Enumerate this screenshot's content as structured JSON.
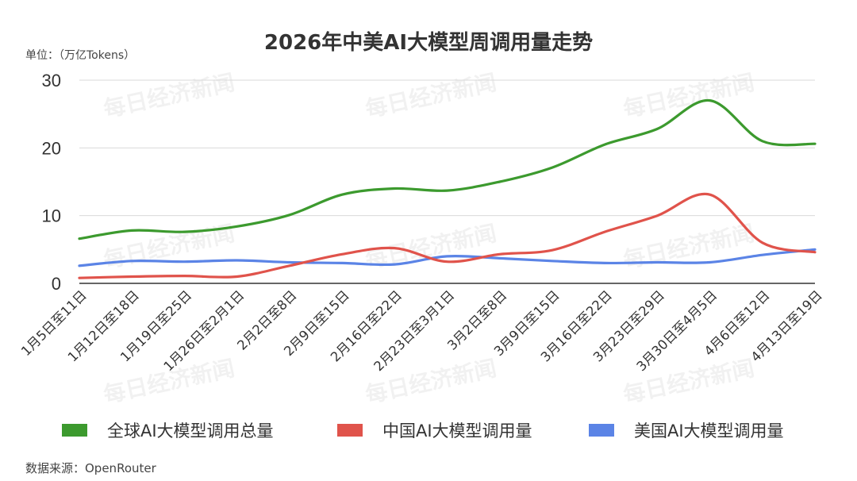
{
  "chart_data": {
    "type": "line",
    "title": "2026年中美AI大模型周调用量走势",
    "unit_label": "单位：（万亿Tokens）",
    "source": "数据来源：OpenRouter",
    "watermark": "每日经济新闻",
    "ylim": [
      0,
      30
    ],
    "yticks": [
      0,
      10,
      20,
      30
    ],
    "grid": true,
    "legend_position": "bottom",
    "categories": [
      "1月5日至11日",
      "1月12日至18日",
      "1月19日至25日",
      "1月26日至2月1日",
      "2月2日至8日",
      "2月9日至15日",
      "2月16日至22日",
      "2月23日至3月1日",
      "3月2日至8日",
      "3月9日至15日",
      "3月16日至22日",
      "3月23日至29日",
      "3月30日至4月5日",
      "4月6日至12日",
      "4月13日至19日"
    ],
    "series": [
      {
        "name": "全球AI大模型调用总量",
        "color": "#3c9a2e",
        "values": [
          6.6,
          7.8,
          7.6,
          8.4,
          10.1,
          13.1,
          14.0,
          13.7,
          15.0,
          17.1,
          20.5,
          22.8,
          27.0,
          21.0,
          20.6
        ]
      },
      {
        "name": "中国AI大模型调用量",
        "color": "#e0534b",
        "values": [
          0.8,
          1.0,
          1.1,
          1.0,
          2.6,
          4.3,
          5.2,
          3.2,
          4.3,
          4.9,
          7.6,
          10.0,
          13.1,
          6.0,
          4.6
        ]
      },
      {
        "name": "美国AI大模型调用量",
        "color": "#5b84e6",
        "values": [
          2.6,
          3.3,
          3.2,
          3.4,
          3.1,
          3.0,
          2.8,
          4.0,
          3.7,
          3.3,
          3.0,
          3.1,
          3.1,
          4.2,
          5.0
        ]
      }
    ]
  }
}
